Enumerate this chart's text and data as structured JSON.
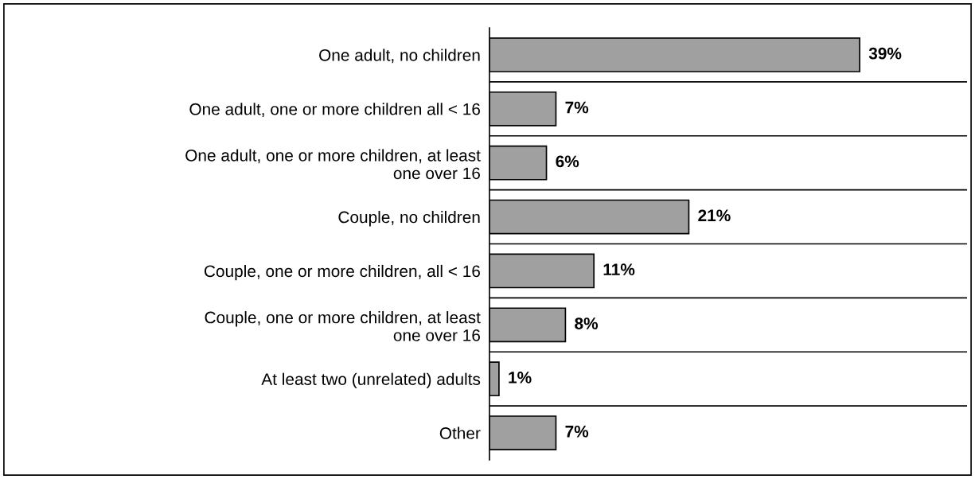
{
  "chart_data": {
    "type": "bar",
    "orientation": "horizontal",
    "categories": [
      "One adult, no children",
      "One adult, one or more children all < 16",
      "One adult, one or more children, at least\none over 16",
      "Couple, no children",
      "Couple, one or more children, all < 16",
      "Couple, one or more children, at least\none over 16",
      "At least two (unrelated) adults",
      "Other"
    ],
    "values": [
      39,
      7,
      6,
      21,
      11,
      8,
      1,
      7
    ],
    "value_labels": [
      "39%",
      "7%",
      "6%",
      "21%",
      "11%",
      "8%",
      "1%",
      "7%"
    ],
    "color": "#a0a0a0",
    "grid": "y",
    "legend": false
  }
}
